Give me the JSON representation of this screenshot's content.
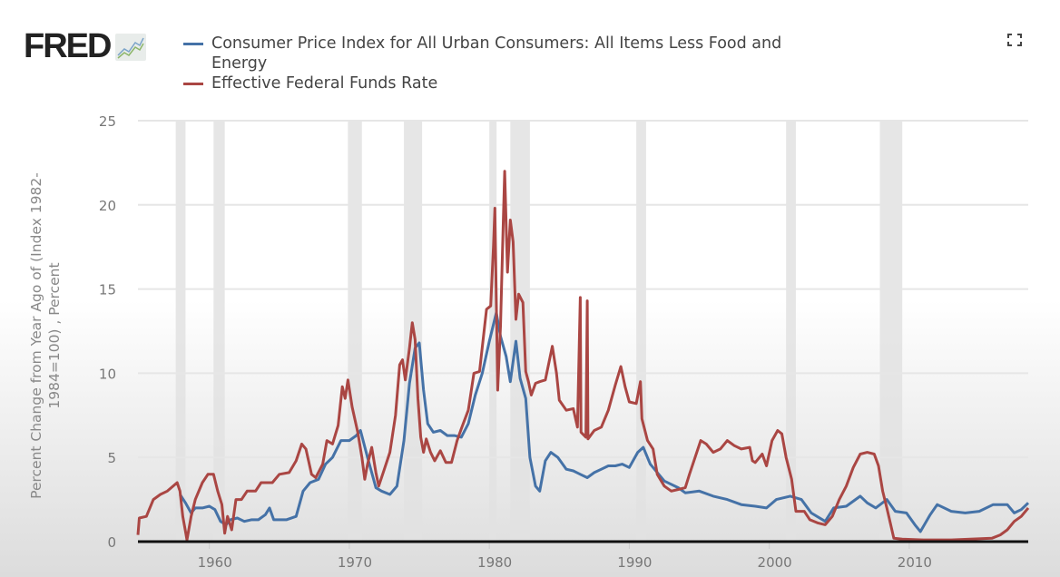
{
  "header": {
    "logo_text": "FRED",
    "fullscreen_icon": "fullscreen-icon"
  },
  "chart_data": {
    "type": "line",
    "title": "",
    "xlabel": "",
    "ylabel": "Percent Change from Year Ago of (Index 1982-1984=100) , Percent",
    "xlim": [
      1954.9,
      2018.5
    ],
    "ylim": [
      0,
      25
    ],
    "grid": true,
    "legend": "top",
    "x_ticks": [
      1960,
      1970,
      1980,
      1990,
      2000,
      2010
    ],
    "x_tick_labels": [
      "1960",
      "1970",
      "1980",
      "1990",
      "2000",
      "2010"
    ],
    "y_ticks": [
      0,
      5,
      10,
      15,
      20,
      25
    ],
    "y_tick_labels": [
      "0",
      "5",
      "10",
      "15",
      "20",
      "25"
    ],
    "recessions": [
      [
        1957.6,
        1958.3
      ],
      [
        1960.3,
        1961.1
      ],
      [
        1969.9,
        1970.9
      ],
      [
        1973.9,
        1975.2
      ],
      [
        1980.0,
        1980.5
      ],
      [
        1981.5,
        1982.9
      ],
      [
        1990.5,
        1991.2
      ],
      [
        2001.2,
        2001.9
      ],
      [
        2007.9,
        2009.5
      ]
    ],
    "series": [
      {
        "name": "Consumer Price Index for All Urban Consumers: All Items Less Food and Energy",
        "color": "#4572a7",
        "points": [
          [
            1957.9,
            2.8
          ],
          [
            1958.3,
            2.3
          ],
          [
            1958.7,
            1.7
          ],
          [
            1959,
            2.0
          ],
          [
            1959.5,
            2.0
          ],
          [
            1960,
            2.1
          ],
          [
            1960.4,
            1.9
          ],
          [
            1960.8,
            1.2
          ],
          [
            1961.2,
            1.0
          ],
          [
            1961.5,
            1.3
          ],
          [
            1962,
            1.4
          ],
          [
            1962.5,
            1.2
          ],
          [
            1963,
            1.3
          ],
          [
            1963.5,
            1.3
          ],
          [
            1964,
            1.6
          ],
          [
            1964.3,
            2.0
          ],
          [
            1964.6,
            1.3
          ],
          [
            1965.5,
            1.3
          ],
          [
            1966.2,
            1.5
          ],
          [
            1966.7,
            3.0
          ],
          [
            1967.2,
            3.5
          ],
          [
            1967.8,
            3.7
          ],
          [
            1968.3,
            4.6
          ],
          [
            1968.8,
            5.0
          ],
          [
            1969.4,
            6.0
          ],
          [
            1970,
            6.0
          ],
          [
            1970.5,
            6.3
          ],
          [
            1970.8,
            6.6
          ],
          [
            1971.3,
            5.0
          ],
          [
            1971.9,
            3.2
          ],
          [
            1972.3,
            3.0
          ],
          [
            1972.9,
            2.8
          ],
          [
            1973.4,
            3.3
          ],
          [
            1973.9,
            6.0
          ],
          [
            1974.3,
            9.4
          ],
          [
            1974.7,
            11.5
          ],
          [
            1975.0,
            11.8
          ],
          [
            1975.3,
            9.0
          ],
          [
            1975.6,
            7.0
          ],
          [
            1976,
            6.5
          ],
          [
            1976.5,
            6.6
          ],
          [
            1977,
            6.3
          ],
          [
            1977.5,
            6.3
          ],
          [
            1978,
            6.2
          ],
          [
            1978.5,
            7.0
          ],
          [
            1979,
            8.7
          ],
          [
            1979.5,
            10.0
          ],
          [
            1980,
            11.9
          ],
          [
            1980.5,
            13.6
          ],
          [
            1980.8,
            12.2
          ],
          [
            1981.2,
            11.0
          ],
          [
            1981.5,
            9.5
          ],
          [
            1981.9,
            11.9
          ],
          [
            1982.2,
            9.7
          ],
          [
            1982.6,
            8.5
          ],
          [
            1982.9,
            5.0
          ],
          [
            1983.3,
            3.3
          ],
          [
            1983.6,
            3.0
          ],
          [
            1984.0,
            4.8
          ],
          [
            1984.4,
            5.3
          ],
          [
            1984.9,
            5.0
          ],
          [
            1985.5,
            4.3
          ],
          [
            1986,
            4.2
          ],
          [
            1986.5,
            4.0
          ],
          [
            1987,
            3.8
          ],
          [
            1987.5,
            4.1
          ],
          [
            1988,
            4.3
          ],
          [
            1988.5,
            4.5
          ],
          [
            1989,
            4.5
          ],
          [
            1989.5,
            4.6
          ],
          [
            1990,
            4.4
          ],
          [
            1990.6,
            5.3
          ],
          [
            1991,
            5.6
          ],
          [
            1991.5,
            4.6
          ],
          [
            1992.5,
            3.6
          ],
          [
            1993.5,
            3.2
          ],
          [
            1994,
            2.9
          ],
          [
            1995,
            3.0
          ],
          [
            1996,
            2.7
          ],
          [
            1997,
            2.5
          ],
          [
            1998,
            2.2
          ],
          [
            1999,
            2.1
          ],
          [
            1999.8,
            2.0
          ],
          [
            2000.5,
            2.5
          ],
          [
            2001.5,
            2.7
          ],
          [
            2002.3,
            2.5
          ],
          [
            2003,
            1.7
          ],
          [
            2004,
            1.2
          ],
          [
            2004.6,
            2.0
          ],
          [
            2005.5,
            2.1
          ],
          [
            2006.5,
            2.7
          ],
          [
            2007,
            2.3
          ],
          [
            2007.6,
            2.0
          ],
          [
            2008.4,
            2.5
          ],
          [
            2009,
            1.8
          ],
          [
            2009.8,
            1.7
          ],
          [
            2010.4,
            1.0
          ],
          [
            2010.8,
            0.6
          ],
          [
            2011.5,
            1.6
          ],
          [
            2012,
            2.2
          ],
          [
            2013,
            1.8
          ],
          [
            2014,
            1.7
          ],
          [
            2015,
            1.8
          ],
          [
            2016,
            2.2
          ],
          [
            2017,
            2.2
          ],
          [
            2017.5,
            1.7
          ],
          [
            2018,
            1.9
          ],
          [
            2018.5,
            2.3
          ]
        ]
      },
      {
        "name": "Effective Federal Funds Rate",
        "color": "#aa4643",
        "points": [
          [
            1954.9,
            0.4
          ],
          [
            1955.0,
            1.4
          ],
          [
            1955.5,
            1.5
          ],
          [
            1956,
            2.5
          ],
          [
            1956.5,
            2.8
          ],
          [
            1957,
            3.0
          ],
          [
            1957.7,
            3.5
          ],
          [
            1957.9,
            3.0
          ],
          [
            1958.1,
            1.5
          ],
          [
            1958.3,
            0.6
          ],
          [
            1958.4,
            0.1
          ],
          [
            1958.7,
            1.5
          ],
          [
            1959,
            2.5
          ],
          [
            1959.5,
            3.5
          ],
          [
            1959.9,
            4.0
          ],
          [
            1960.3,
            4.0
          ],
          [
            1960.6,
            3.0
          ],
          [
            1960.9,
            2.2
          ],
          [
            1961.1,
            0.5
          ],
          [
            1961.3,
            1.5
          ],
          [
            1961.6,
            0.7
          ],
          [
            1961.9,
            2.5
          ],
          [
            1962.3,
            2.5
          ],
          [
            1962.7,
            3.0
          ],
          [
            1963.3,
            3.0
          ],
          [
            1963.7,
            3.5
          ],
          [
            1964.5,
            3.5
          ],
          [
            1965,
            4.0
          ],
          [
            1965.7,
            4.1
          ],
          [
            1966.2,
            4.8
          ],
          [
            1966.6,
            5.8
          ],
          [
            1966.9,
            5.5
          ],
          [
            1967.3,
            4.0
          ],
          [
            1967.6,
            3.8
          ],
          [
            1968.1,
            4.6
          ],
          [
            1968.4,
            6.0
          ],
          [
            1968.8,
            5.8
          ],
          [
            1969.2,
            6.9
          ],
          [
            1969.5,
            9.2
          ],
          [
            1969.7,
            8.5
          ],
          [
            1969.9,
            9.6
          ],
          [
            1970.2,
            8.0
          ],
          [
            1970.6,
            6.5
          ],
          [
            1970.9,
            5.0
          ],
          [
            1971.1,
            3.7
          ],
          [
            1971.3,
            4.6
          ],
          [
            1971.6,
            5.6
          ],
          [
            1971.9,
            4.1
          ],
          [
            1972.1,
            3.3
          ],
          [
            1972.5,
            4.3
          ],
          [
            1972.9,
            5.3
          ],
          [
            1973.3,
            7.5
          ],
          [
            1973.6,
            10.5
          ],
          [
            1973.8,
            10.8
          ],
          [
            1974.0,
            9.6
          ],
          [
            1974.3,
            11.5
          ],
          [
            1974.5,
            13.0
          ],
          [
            1974.7,
            12.0
          ],
          [
            1974.9,
            8.5
          ],
          [
            1975.1,
            6.2
          ],
          [
            1975.3,
            5.3
          ],
          [
            1975.5,
            6.1
          ],
          [
            1975.8,
            5.3
          ],
          [
            1976.1,
            4.8
          ],
          [
            1976.5,
            5.4
          ],
          [
            1976.9,
            4.7
          ],
          [
            1977.3,
            4.7
          ],
          [
            1977.7,
            6.0
          ],
          [
            1978.0,
            6.7
          ],
          [
            1978.5,
            7.8
          ],
          [
            1978.9,
            10.0
          ],
          [
            1979.3,
            10.1
          ],
          [
            1979.8,
            13.8
          ],
          [
            1980.1,
            14.0
          ],
          [
            1980.3,
            17.6
          ],
          [
            1980.4,
            19.8
          ],
          [
            1980.6,
            9.0
          ],
          [
            1980.8,
            12.8
          ],
          [
            1981.0,
            19.1
          ],
          [
            1981.1,
            22.0
          ],
          [
            1981.3,
            16.0
          ],
          [
            1981.5,
            19.1
          ],
          [
            1981.7,
            17.8
          ],
          [
            1981.9,
            13.2
          ],
          [
            1982.1,
            14.7
          ],
          [
            1982.4,
            14.2
          ],
          [
            1982.6,
            10.1
          ],
          [
            1982.8,
            9.5
          ],
          [
            1983,
            8.7
          ],
          [
            1983.3,
            9.4
          ],
          [
            1983.6,
            9.5
          ],
          [
            1984,
            9.6
          ],
          [
            1984.5,
            11.6
          ],
          [
            1984.8,
            10.0
          ],
          [
            1985,
            8.4
          ],
          [
            1985.5,
            7.8
          ],
          [
            1986,
            7.9
          ],
          [
            1986.3,
            6.8
          ],
          [
            1986.5,
            14.5
          ],
          [
            1986.55,
            6.5
          ],
          [
            1986.9,
            6.2
          ],
          [
            1987.0,
            14.3
          ],
          [
            1987.05,
            6.1
          ],
          [
            1987.5,
            6.6
          ],
          [
            1988,
            6.8
          ],
          [
            1988.5,
            7.8
          ],
          [
            1989,
            9.3
          ],
          [
            1989.4,
            10.4
          ],
          [
            1989.7,
            9.2
          ],
          [
            1990,
            8.3
          ],
          [
            1990.5,
            8.2
          ],
          [
            1990.8,
            9.5
          ],
          [
            1990.9,
            7.3
          ],
          [
            1991.3,
            6.0
          ],
          [
            1991.7,
            5.5
          ],
          [
            1992,
            4.0
          ],
          [
            1992.5,
            3.3
          ],
          [
            1993,
            3.0
          ],
          [
            1993.5,
            3.1
          ],
          [
            1994,
            3.2
          ],
          [
            1994.3,
            4.0
          ],
          [
            1994.7,
            5.0
          ],
          [
            1995.1,
            6.0
          ],
          [
            1995.5,
            5.8
          ],
          [
            1996,
            5.3
          ],
          [
            1996.5,
            5.5
          ],
          [
            1997,
            6.0
          ],
          [
            1997.5,
            5.7
          ],
          [
            1998,
            5.5
          ],
          [
            1998.6,
            5.6
          ],
          [
            1998.8,
            4.8
          ],
          [
            1999,
            4.7
          ],
          [
            1999.5,
            5.2
          ],
          [
            1999.8,
            4.5
          ],
          [
            2000.2,
            6.0
          ],
          [
            2000.6,
            6.6
          ],
          [
            2000.9,
            6.4
          ],
          [
            2001.2,
            5.0
          ],
          [
            2001.6,
            3.7
          ],
          [
            2001.9,
            1.8
          ],
          [
            2002.5,
            1.8
          ],
          [
            2002.9,
            1.3
          ],
          [
            2003.5,
            1.1
          ],
          [
            2004.0,
            1.0
          ],
          [
            2004.5,
            1.5
          ],
          [
            2005,
            2.5
          ],
          [
            2005.5,
            3.3
          ],
          [
            2006,
            4.4
          ],
          [
            2006.5,
            5.2
          ],
          [
            2007,
            5.3
          ],
          [
            2007.5,
            5.2
          ],
          [
            2007.8,
            4.5
          ],
          [
            2008.1,
            3.0
          ],
          [
            2008.4,
            2.0
          ],
          [
            2008.9,
            0.2
          ],
          [
            2009.5,
            0.15
          ],
          [
            2011,
            0.1
          ],
          [
            2013,
            0.1
          ],
          [
            2015.9,
            0.2
          ],
          [
            2016.5,
            0.4
          ],
          [
            2017,
            0.7
          ],
          [
            2017.5,
            1.2
          ],
          [
            2018,
            1.5
          ],
          [
            2018.5,
            2.0
          ]
        ]
      }
    ]
  }
}
